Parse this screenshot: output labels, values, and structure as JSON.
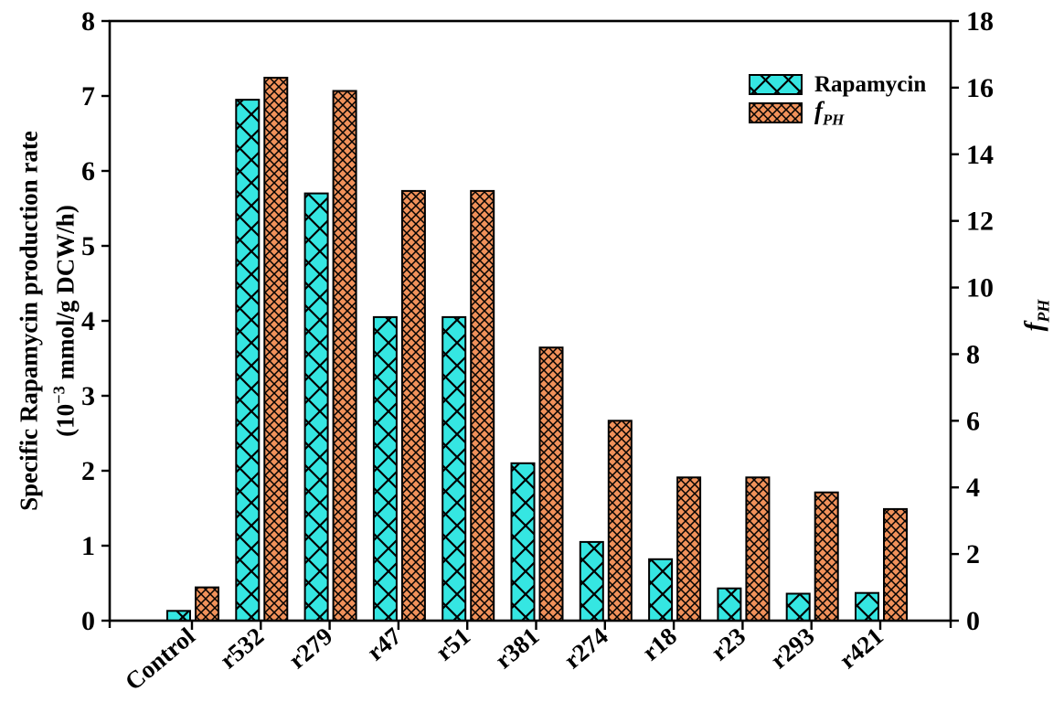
{
  "figure": {
    "legend": {
      "rapamycin_label": "Rapamycin",
      "fph_label_main": "f",
      "fph_label_sub": "PH"
    },
    "left_axis_label": {
      "line1": "Specific Rapamycin production rate",
      "line2_prefix": "(10",
      "line2_sup": "−3",
      "line2_suffix": " mmol/g DCW/h)"
    },
    "right_axis_label": {
      "main": "f",
      "sub": "PH"
    },
    "colors": {
      "rapamycin_fill": "#35E6E2",
      "fph_fill": "#F0915A",
      "hatch_line": "#000000",
      "axis": "#000000",
      "background": "#FFFFFF"
    }
  },
  "chart_data": {
    "type": "bar",
    "title": "",
    "categories": [
      "Control",
      "r532",
      "r279",
      "r47",
      "r51",
      "r381",
      "r274",
      "r18",
      "r23",
      "r293",
      "r421"
    ],
    "series": [
      {
        "name": "Rapamycin",
        "axis": "left",
        "pattern": "cyan-crosshatch",
        "values": [
          0.13,
          6.95,
          5.7,
          4.05,
          4.05,
          2.1,
          1.05,
          0.82,
          0.43,
          0.36,
          0.37
        ]
      },
      {
        "name": "fPH",
        "axis": "right",
        "pattern": "orange-crosshatch",
        "values": [
          1.0,
          16.3,
          15.9,
          12.9,
          12.9,
          8.2,
          6.0,
          4.3,
          4.3,
          3.85,
          3.35
        ]
      }
    ],
    "left_axis": {
      "label": "Specific Rapamycin production rate (10−3 mmol/g DCW/h)",
      "range": [
        0,
        8
      ],
      "ticks": [
        0,
        1,
        2,
        3,
        4,
        5,
        6,
        7,
        8
      ]
    },
    "right_axis": {
      "label": "fPH",
      "range": [
        0,
        18
      ],
      "ticks": [
        0,
        2,
        4,
        6,
        8,
        10,
        12,
        14,
        16,
        18
      ]
    },
    "x_axis": {
      "label": "",
      "tick_rotation_deg": -40
    },
    "legend_position": "top-right",
    "grid": false
  }
}
